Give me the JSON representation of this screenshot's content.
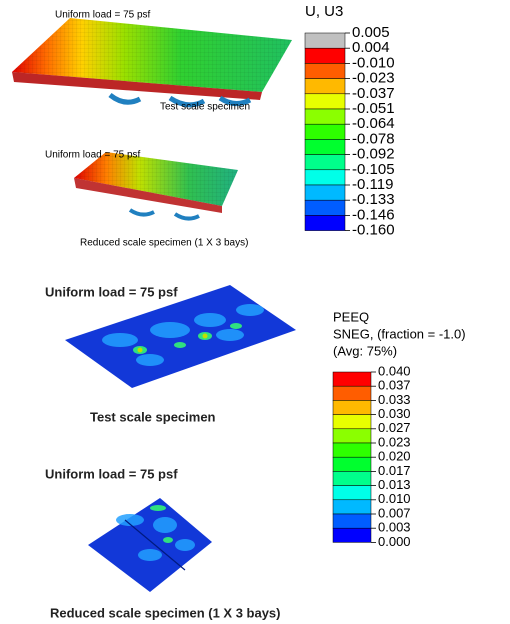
{
  "panels": [
    {
      "load_label": "Uniform load = 75 psf",
      "caption": "Test scale specimen"
    },
    {
      "load_label": "Uniform load = 75 psf",
      "caption": "Reduced scale specimen (1 X 3 bays)"
    },
    {
      "load_label": "Uniform load = 75 psf",
      "caption": "Test scale specimen"
    },
    {
      "load_label": "Uniform load = 75 psf",
      "caption": "Reduced scale specimen (1 X 3 bays)"
    }
  ],
  "legends": [
    {
      "title_lines": [
        "U, U3"
      ],
      "labels": [
        "0.005",
        "0.004",
        "-0.010",
        "-0.023",
        "-0.037",
        "-0.051",
        "-0.064",
        "-0.078",
        "-0.092",
        "-0.105",
        "-0.119",
        "-0.133",
        "-0.146",
        "-0.160"
      ],
      "colors": [
        "#c0c0c0",
        "#ff0000",
        "#ff5d00",
        "#ffb900",
        "#e8ff00",
        "#8bff00",
        "#2eff00",
        "#00ff2e",
        "#00ff8b",
        "#00ffe8",
        "#00b9ff",
        "#005dff",
        "#0000ff"
      ]
    },
    {
      "title_lines": [
        "PEEQ",
        "SNEG, (fraction = -1.0)",
        "(Avg: 75%)"
      ],
      "labels": [
        "0.040",
        "0.037",
        "0.033",
        "0.030",
        "0.027",
        "0.023",
        "0.020",
        "0.017",
        "0.013",
        "0.010",
        "0.007",
        "0.003",
        "0.000"
      ],
      "colors": [
        "#ff0000",
        "#ff5d00",
        "#ffb900",
        "#e8ff00",
        "#8bff00",
        "#2eff00",
        "#00ff2e",
        "#00ff8b",
        "#00ffe8",
        "#00b9ff",
        "#005dff",
        "#0000ff"
      ]
    }
  ]
}
